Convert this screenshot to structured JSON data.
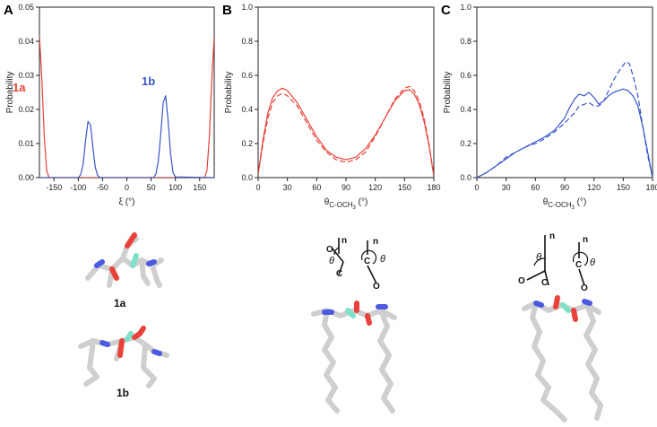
{
  "chart_data": [
    {
      "type": "line",
      "panel": "A",
      "xlabel": "ξ (°)",
      "ylabel": "Probability",
      "xlim": [
        -180,
        180
      ],
      "ylim": [
        0,
        0.05
      ],
      "xticks": [
        "-150",
        "-100",
        "-50",
        "0",
        "50",
        "100",
        "150"
      ],
      "xtick_values": [
        -150,
        -100,
        -50,
        0,
        50,
        100,
        150
      ],
      "yticks": [
        "0.00",
        "0.01",
        "0.02",
        "0.03",
        "0.04",
        "0.05"
      ],
      "ytick_values": [
        0,
        0.01,
        0.02,
        0.03,
        0.04,
        0.05
      ],
      "annotations": [
        {
          "text": "1a",
          "color": "#e8423a"
        },
        {
          "text": "1b",
          "color": "#3a56c9"
        }
      ],
      "series": [
        {
          "name": "1a",
          "color": "#e8423a",
          "dashed": false,
          "x": [
            -180,
            -175,
            -170,
            -165,
            -160,
            160,
            165,
            170,
            175,
            180
          ],
          "y": [
            0.0415,
            0.029,
            0.012,
            0.002,
            0.0,
            0.0,
            0.002,
            0.012,
            0.029,
            0.0415
          ]
        },
        {
          "name": "1b",
          "color": "#3a56c9",
          "dashed": false,
          "x": [
            -180,
            -100,
            -95,
            -90,
            -85,
            -80,
            -75,
            -70,
            -65,
            -60,
            -55,
            0,
            55,
            60,
            65,
            70,
            75,
            80,
            85,
            90,
            95,
            100,
            180
          ],
          "y": [
            0,
            0,
            0.0008,
            0.004,
            0.011,
            0.0165,
            0.0155,
            0.009,
            0.003,
            0.0006,
            0,
            0,
            0,
            0.001,
            0.005,
            0.013,
            0.022,
            0.024,
            0.017,
            0.007,
            0.0015,
            0.0002,
            0
          ]
        }
      ]
    },
    {
      "type": "line",
      "panel": "B",
      "xlabel_main": "θ",
      "xlabel_sub": "C-OCH",
      "xlabel_sub2": "3",
      "xlabel_unit": " (°)",
      "ylabel": "Probability",
      "xlim": [
        0,
        180
      ],
      "ylim": [
        0,
        1.0
      ],
      "xticks": [
        "0",
        "30",
        "60",
        "90",
        "120",
        "150",
        "180"
      ],
      "xtick_values": [
        0,
        30,
        60,
        90,
        120,
        150,
        180
      ],
      "yticks": [
        "0.0",
        "0.2",
        "0.4",
        "0.6",
        "0.8",
        "1.0"
      ],
      "ytick_values": [
        0,
        0.2,
        0.4,
        0.6,
        0.8,
        1.0
      ],
      "series": [
        {
          "color": "#e8423a",
          "dashed": false,
          "x": [
            0,
            5,
            10,
            15,
            20,
            25,
            30,
            40,
            50,
            60,
            70,
            80,
            90,
            100,
            110,
            120,
            130,
            140,
            150,
            155,
            160,
            165,
            170,
            175,
            180
          ],
          "y": [
            0.02,
            0.22,
            0.38,
            0.47,
            0.51,
            0.525,
            0.51,
            0.44,
            0.34,
            0.24,
            0.16,
            0.12,
            0.105,
            0.12,
            0.17,
            0.25,
            0.35,
            0.45,
            0.51,
            0.515,
            0.49,
            0.43,
            0.33,
            0.19,
            0.01
          ]
        },
        {
          "color": "#e8423a",
          "dashed": true,
          "x": [
            0,
            5,
            10,
            15,
            20,
            25,
            30,
            40,
            50,
            60,
            70,
            80,
            90,
            100,
            110,
            120,
            130,
            140,
            150,
            155,
            160,
            165,
            170,
            175,
            180
          ],
          "y": [
            0.02,
            0.2,
            0.35,
            0.44,
            0.48,
            0.495,
            0.48,
            0.42,
            0.32,
            0.22,
            0.15,
            0.105,
            0.09,
            0.105,
            0.15,
            0.24,
            0.35,
            0.46,
            0.525,
            0.535,
            0.51,
            0.45,
            0.35,
            0.2,
            0.01
          ]
        }
      ]
    },
    {
      "type": "line",
      "panel": "C",
      "xlabel_main": "θ",
      "xlabel_sub": "C-OCH",
      "xlabel_sub2": "3",
      "xlabel_unit": " (°)",
      "ylabel": "Probability",
      "xlim": [
        0,
        180
      ],
      "ylim": [
        0,
        1.0
      ],
      "xticks": [
        "0",
        "30",
        "60",
        "90",
        "120",
        "150",
        "180"
      ],
      "xtick_values": [
        0,
        30,
        60,
        90,
        120,
        150,
        180
      ],
      "yticks": [
        "0.0",
        "0.2",
        "0.4",
        "0.6",
        "0.8",
        "1.0"
      ],
      "ytick_values": [
        0,
        0.2,
        0.4,
        0.6,
        0.8,
        1.0
      ],
      "series": [
        {
          "color": "#3a56c9",
          "dashed": false,
          "x": [
            0,
            10,
            20,
            30,
            40,
            50,
            60,
            70,
            80,
            90,
            95,
            100,
            105,
            110,
            115,
            120,
            125,
            130,
            135,
            140,
            145,
            150,
            155,
            160,
            165,
            170,
            175,
            180
          ],
          "y": [
            0,
            0.03,
            0.07,
            0.11,
            0.15,
            0.18,
            0.21,
            0.24,
            0.28,
            0.35,
            0.41,
            0.46,
            0.49,
            0.48,
            0.5,
            0.47,
            0.43,
            0.45,
            0.48,
            0.5,
            0.51,
            0.52,
            0.51,
            0.48,
            0.42,
            0.3,
            0.15,
            0
          ]
        },
        {
          "color": "#3a56c9",
          "dashed": true,
          "x": [
            0,
            10,
            20,
            30,
            40,
            50,
            60,
            70,
            80,
            90,
            100,
            105,
            110,
            115,
            120,
            125,
            130,
            135,
            140,
            145,
            150,
            153,
            156,
            160,
            165,
            170,
            175,
            180
          ],
          "y": [
            0,
            0.03,
            0.07,
            0.12,
            0.15,
            0.18,
            0.2,
            0.23,
            0.27,
            0.32,
            0.38,
            0.42,
            0.43,
            0.44,
            0.42,
            0.42,
            0.45,
            0.51,
            0.57,
            0.62,
            0.66,
            0.68,
            0.67,
            0.6,
            0.48,
            0.3,
            0.13,
            0
          ]
        }
      ]
    }
  ],
  "labels": {
    "panel_a": "A",
    "panel_b": "B",
    "panel_c": "C",
    "mol_1a": "1a",
    "mol_1b": "1b",
    "n": "n",
    "o": "O",
    "c": "C",
    "theta": "θ"
  },
  "colors": {
    "stick": "#cfcfcf",
    "oxygen": "#e8423a",
    "nitrogen": "#4a5be0",
    "carbon_ester": "#7ee0c8"
  }
}
